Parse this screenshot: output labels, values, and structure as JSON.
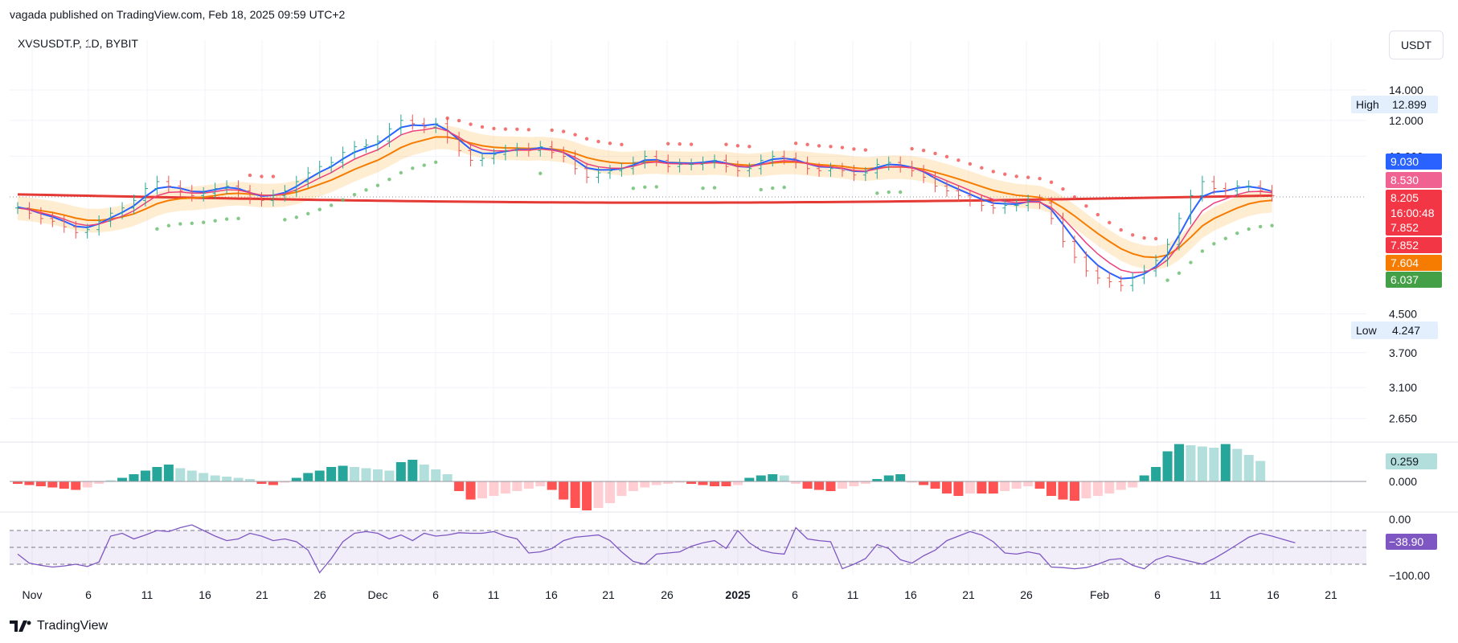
{
  "header": {
    "published": "vagada published on TradingView.com, Feb 18, 2025 09:59 UTC+2",
    "symbol": "XVSUSDT.P, 1D, BYBIT",
    "currency_button": "USDT",
    "brand": "TradingView"
  },
  "chart_data": {
    "type": "candlestick",
    "symbol": "XVSUSDT.P",
    "interval": "1D",
    "exchange": "BYBIT",
    "y_scale": "log",
    "price_ticks": [
      "14.000",
      "12.000",
      "10.000",
      "4.500",
      "3.700",
      "3.100",
      "2.650"
    ],
    "x_ticks": [
      "Nov",
      "6",
      "11",
      "16",
      "21",
      "26",
      "Dec",
      "6",
      "11",
      "16",
      "21",
      "26",
      "2025",
      "6",
      "11",
      "16",
      "21",
      "26",
      "Feb",
      "6",
      "11",
      "16",
      "21"
    ],
    "high_label": {
      "label": "High",
      "value": "12.899"
    },
    "low_label": {
      "label": "Low",
      "value": "4.247"
    },
    "price_tags": [
      {
        "value": "9.030",
        "color": "#2962ff"
      },
      {
        "value": "8.530",
        "color": "#f06292"
      },
      {
        "value": "8.205",
        "color": "#f23645",
        "countdown": "16:00:48"
      },
      {
        "value": "7.852",
        "color": "#f23645"
      },
      {
        "value": "7.852",
        "color": "#f23645"
      },
      {
        "value": "7.604",
        "color": "#f57c00"
      },
      {
        "value": "6.037",
        "color": "#43a047"
      }
    ],
    "last_price": 8.205,
    "closes": [
      7.7,
      7.5,
      7.3,
      7.2,
      7.0,
      6.8,
      6.9,
      7.2,
      7.5,
      7.7,
      8.0,
      8.5,
      8.8,
      8.6,
      8.4,
      8.2,
      8.3,
      8.5,
      8.6,
      8.4,
      8.1,
      8.0,
      8.2,
      8.4,
      8.8,
      9.2,
      9.5,
      9.7,
      10.2,
      10.5,
      10.6,
      10.8,
      11.5,
      12.0,
      11.8,
      11.6,
      11.8,
      11.0,
      10.3,
      9.8,
      9.9,
      10.1,
      10.3,
      10.4,
      10.3,
      10.5,
      10.2,
      10.0,
      9.4,
      9.0,
      9.2,
      9.3,
      9.4,
      9.7,
      10.0,
      9.8,
      9.5,
      9.6,
      9.6,
      9.7,
      9.8,
      9.5,
      9.3,
      9.4,
      9.8,
      10.0,
      9.9,
      9.7,
      9.4,
      9.3,
      9.4,
      9.3,
      9.1,
      9.2,
      9.6,
      9.7,
      9.5,
      9.3,
      9.0,
      8.6,
      8.4,
      8.2,
      8.0,
      7.8,
      7.7,
      7.8,
      7.8,
      8.0,
      7.9,
      7.3,
      6.5,
      6.0,
      5.6,
      5.4,
      5.3,
      5.2,
      5.4,
      5.6,
      5.9,
      6.4,
      7.3,
      8.2,
      8.8,
      8.5,
      8.4,
      8.6,
      8.6,
      8.4,
      8.2
    ],
    "sma_long": {
      "start": 8.25,
      "low": 7.9,
      "end": 8.2,
      "color": "#e53935"
    },
    "macd_histogram": [
      -0.02,
      -0.03,
      -0.04,
      -0.05,
      -0.06,
      -0.07,
      -0.05,
      -0.02,
      0.01,
      0.03,
      0.06,
      0.09,
      0.12,
      0.14,
      0.11,
      0.09,
      0.07,
      0.05,
      0.04,
      0.03,
      0.02,
      -0.02,
      -0.03,
      -0.01,
      0.03,
      0.07,
      0.09,
      0.12,
      0.13,
      0.12,
      0.11,
      0.1,
      0.09,
      0.16,
      0.18,
      0.14,
      0.1,
      0.06,
      -0.08,
      -0.15,
      -0.14,
      -0.12,
      -0.1,
      -0.08,
      -0.06,
      -0.04,
      -0.07,
      -0.15,
      -0.22,
      -0.24,
      -0.22,
      -0.18,
      -0.12,
      -0.08,
      -0.05,
      -0.03,
      -0.02,
      -0.01,
      -0.02,
      -0.03,
      -0.04,
      -0.04,
      -0.03,
      0.03,
      0.05,
      0.06,
      0.05,
      -0.02,
      -0.06,
      -0.07,
      -0.08,
      -0.06,
      -0.04,
      -0.02,
      0.02,
      0.05,
      0.06,
      -0.01,
      -0.03,
      -0.06,
      -0.1,
      -0.12,
      -0.1,
      -0.1,
      -0.1,
      -0.08,
      -0.06,
      -0.04,
      -0.06,
      -0.12,
      -0.15,
      -0.16,
      -0.14,
      -0.12,
      -0.1,
      -0.07,
      -0.05,
      0.05,
      0.12,
      0.25,
      0.31,
      0.3,
      0.29,
      0.28,
      0.31,
      0.27,
      0.22,
      0.17
    ],
    "macd_value": "0.259",
    "macd_zero": "0.000",
    "osc_values": [
      -62,
      -78,
      -82,
      -85,
      -83,
      -80,
      -84,
      -76,
      -30,
      -25,
      -35,
      -28,
      -20,
      -22,
      -15,
      -10,
      -20,
      -30,
      -38,
      -35,
      -25,
      -30,
      -38,
      -35,
      -40,
      -55,
      -95,
      -70,
      -40,
      -25,
      -22,
      -25,
      -35,
      -28,
      -38,
      -25,
      -30,
      -28,
      -24,
      -25,
      -25,
      -22,
      -30,
      -35,
      -60,
      -58,
      -52,
      -38,
      -32,
      -30,
      -28,
      -38,
      -58,
      -75,
      -80,
      -62,
      -60,
      -58,
      -48,
      -42,
      -38,
      -52,
      -20,
      -42,
      -55,
      -60,
      -62,
      -15,
      -35,
      -38,
      -40,
      -88,
      -80,
      -70,
      -45,
      -52,
      -72,
      -78,
      -65,
      -55,
      -38,
      -30,
      -22,
      -28,
      -40,
      -60,
      -62,
      -58,
      -62,
      -85,
      -86,
      -88,
      -86,
      -80,
      -72,
      -70,
      -82,
      -88,
      -72,
      -65,
      -70,
      -75,
      -80,
      -70,
      -58,
      -45,
      -32,
      -25,
      -30,
      -36,
      -42
    ],
    "osc_ticks": [
      "0.00",
      "−100.00"
    ],
    "osc_value": "−38.90"
  }
}
